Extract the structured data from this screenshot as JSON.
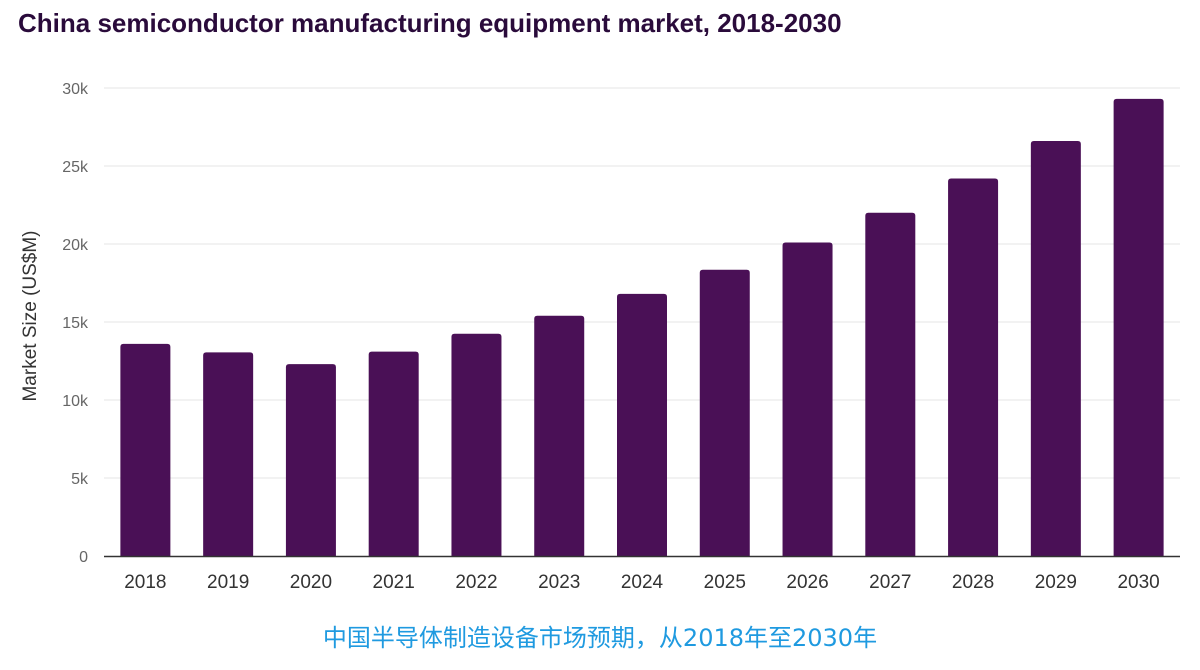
{
  "title": "China semiconductor manufacturing equipment market, 2018-2030",
  "caption": "中国半导体制造设备市场预期，从2018年至2030年",
  "colors": {
    "bar": "#4a1056",
    "grid": "#e6e6e6",
    "axis": "#333333",
    "tick_text": "#666666",
    "title": "#2a0b3b",
    "caption": "#1f9ae0"
  },
  "chart_data": {
    "type": "bar",
    "title": "China semiconductor manufacturing equipment market, 2018-2030",
    "xlabel": "",
    "ylabel": "Market Size (US$M)",
    "categories": [
      "2018",
      "2019",
      "2020",
      "2021",
      "2022",
      "2023",
      "2024",
      "2025",
      "2026",
      "2027",
      "2028",
      "2029",
      "2030"
    ],
    "values": [
      13600,
      13050,
      12300,
      13100,
      14250,
      15400,
      16800,
      18350,
      20100,
      22000,
      24200,
      26600,
      29300
    ],
    "ylim": [
      0,
      30000
    ],
    "yticks": [
      0,
      5000,
      10000,
      15000,
      20000,
      25000,
      30000
    ],
    "ytick_labels": [
      "0",
      "5k",
      "10k",
      "15k",
      "20k",
      "25k",
      "30k"
    ],
    "grid": true,
    "legend": "none"
  }
}
